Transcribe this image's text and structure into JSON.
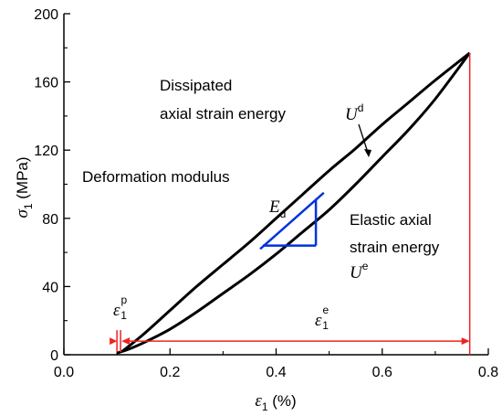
{
  "chart_data": {
    "type": "line",
    "xlabel": {
      "symbol": "ε",
      "sub": "1",
      "rest": " (%)"
    },
    "ylabel": {
      "symbol": "σ",
      "sub": "1",
      "rest": " (MPa)"
    },
    "xlim": [
      0.0,
      0.8
    ],
    "ylim": [
      0,
      200
    ],
    "x_ticks": [
      "0.0",
      "0.2",
      "0.4",
      "0.6",
      "0.8"
    ],
    "y_ticks": [
      "0",
      "40",
      "80",
      "120",
      "160",
      "200"
    ],
    "grid": false,
    "series": [
      {
        "x": [
          0.11,
          0.15,
          0.2,
          0.25,
          0.3,
          0.35,
          0.4,
          0.45,
          0.5,
          0.55,
          0.6,
          0.65,
          0.7,
          0.765
        ],
        "y": [
          2,
          12,
          26,
          40,
          53,
          66,
          80,
          94,
          108,
          121,
          135,
          148,
          161,
          177
        ],
        "color": "#000000"
      },
      {
        "x": [
          0.765,
          0.7,
          0.65,
          0.6,
          0.55,
          0.5,
          0.45,
          0.4,
          0.35,
          0.3,
          0.25,
          0.2,
          0.15,
          0.12,
          0.1
        ],
        "y": [
          177,
          150,
          132,
          116,
          100,
          85,
          72,
          59,
          47,
          36,
          25,
          15,
          7,
          3,
          1
        ],
        "color": "#000000"
      }
    ],
    "annotations": {
      "dissipated_line1": "Dissipated",
      "dissipated_line2": "axial strain energy",
      "ud_symbol": "U",
      "ud_sup": "d",
      "deformation_modulus": "Deformation modulus",
      "ed_symbol": "E",
      "ed_sub": "d",
      "elastic_line1": "Elastic axial",
      "elastic_line2": "strain energy",
      "ue_symbol": "U",
      "ue_sup": "e",
      "eps_p_symbol": "ε",
      "eps_p_sub": "1",
      "eps_p_sup": "p",
      "eps_e_symbol": "ε",
      "eps_e_sub": "1",
      "eps_e_sup": "e"
    },
    "colors": {
      "curve": "#000000",
      "modulus": "#0033dd",
      "strain": "#ee2222"
    },
    "modulus_triangle": {
      "x1": 0.375,
      "y1": 64,
      "x2": 0.475,
      "y2": 91
    },
    "modulus_line": {
      "x1": 0.37,
      "y1": 62,
      "x2": 0.49,
      "y2": 95
    },
    "strain_arrow": {
      "y": 8,
      "x_start": 0.087,
      "x_mid": 0.1,
      "x_end": 0.765,
      "x_gap": 0.112
    }
  }
}
